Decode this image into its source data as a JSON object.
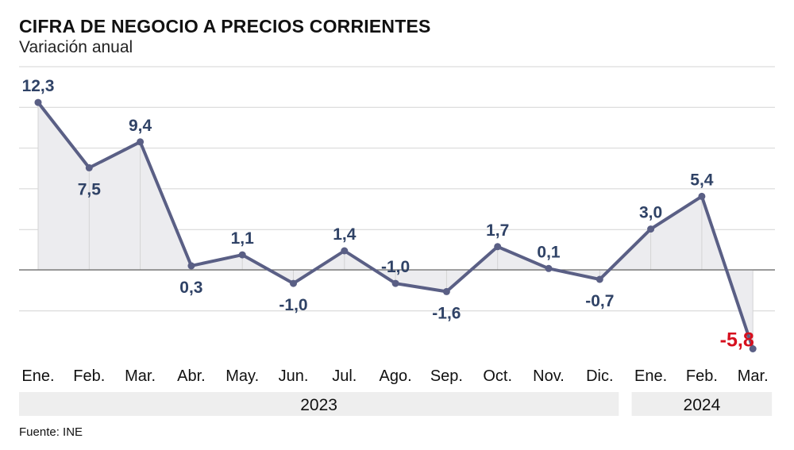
{
  "title": "CIFRA DE NEGOCIO A PRECIOS CORRIENTES",
  "subtitle": "Variación anual",
  "source": "Fuente: INE",
  "colors": {
    "line": "#5a5f85",
    "highlight": "#d6101e",
    "label": "#2f4266",
    "area": "#ececef",
    "grid": "#d4d4d4",
    "year_band": "#eeeeee"
  },
  "chart_data": {
    "type": "line",
    "categories": [
      "Ene.",
      "Feb.",
      "Mar.",
      "Abr.",
      "May.",
      "Jun.",
      "Jul.",
      "Ago.",
      "Sep.",
      "Oct.",
      "Nov.",
      "Dic.",
      "Ene.",
      "Feb.",
      "Mar."
    ],
    "values": [
      12.3,
      7.5,
      9.4,
      0.3,
      1.1,
      -1.0,
      1.4,
      -1.0,
      -1.6,
      1.7,
      0.1,
      -0.7,
      3.0,
      5.4,
      -5.8
    ],
    "value_labels": [
      "12,3",
      "7,5",
      "9,4",
      "0,3",
      "1,1",
      "-1,0",
      "1,4",
      "-1,0",
      "-1,6",
      "1,7",
      "0,1",
      "-0,7",
      "3,0",
      "5,4",
      "-5,8"
    ],
    "highlight_index": 14,
    "years": [
      {
        "label": "2023",
        "from": 0,
        "to": 11
      },
      {
        "label": "2024",
        "from": 12,
        "to": 14
      }
    ],
    "ylim": [
      -6,
      15
    ],
    "grid": true
  }
}
